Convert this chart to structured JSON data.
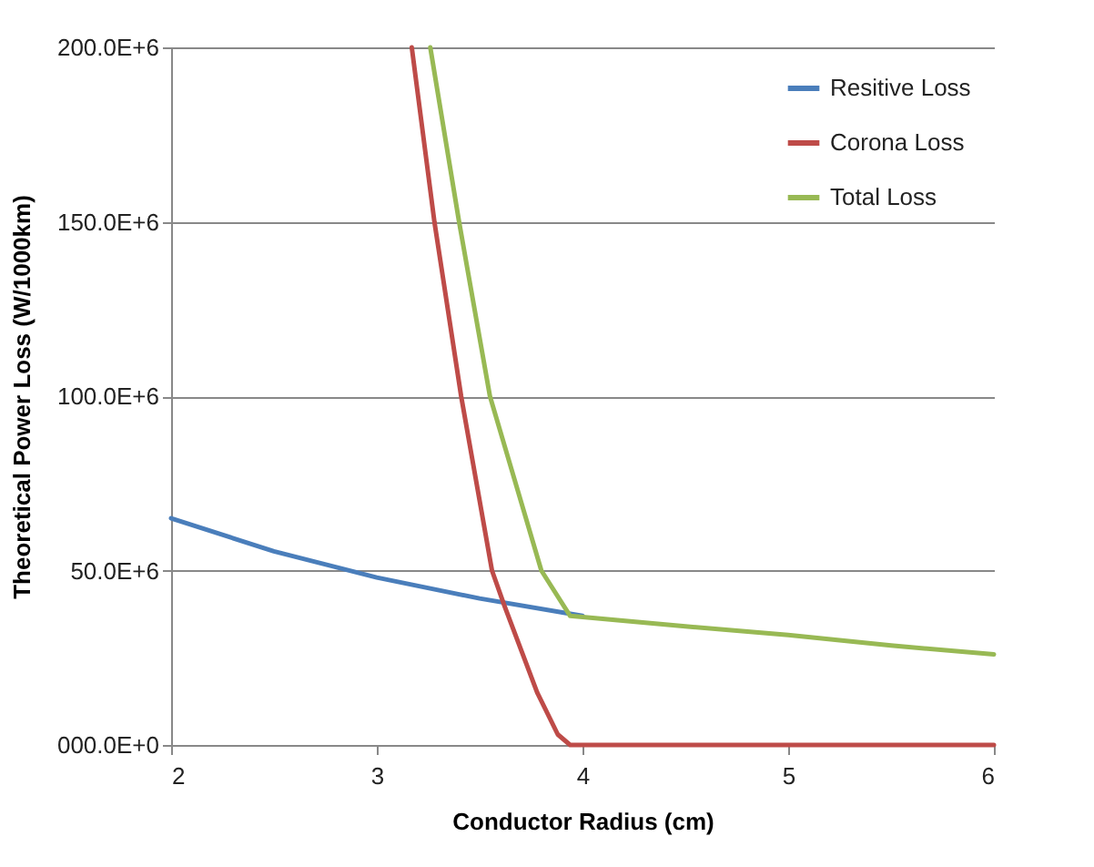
{
  "chart_data": {
    "type": "line",
    "xlabel": "Conductor Radius (cm)",
    "ylabel": "Theoretical Power Loss (W/1000km)",
    "xlim": [
      2,
      6
    ],
    "xticks": [
      2,
      3,
      4,
      5,
      6
    ],
    "ylim": [
      0,
      200000000
    ],
    "yticks": [
      {
        "value": 0,
        "label": "000.0E+0"
      },
      {
        "value": 50000000,
        "label": "50.0E+6"
      },
      {
        "value": 100000000,
        "label": "100.0E+6"
      },
      {
        "value": 150000000,
        "label": "150.0E+6"
      },
      {
        "value": 200000000,
        "label": "200.0E+6"
      }
    ],
    "grid": "y",
    "legend": "top right",
    "series": [
      {
        "name": "Resitive Loss",
        "color": "#4a7ebb",
        "x": [
          2,
          2.5,
          3,
          3.5,
          4
        ],
        "values": [
          65000000,
          55500000,
          48000000,
          42000000,
          37000000
        ]
      },
      {
        "name": "Corona Loss",
        "color": "#be4b48",
        "x": [
          3.17,
          3.28,
          3.41,
          3.56,
          3.62,
          3.78,
          3.88,
          3.94,
          6
        ],
        "values": [
          200000000,
          150000000,
          100000000,
          50000000,
          40000000,
          15000000,
          3000000,
          0,
          0
        ]
      },
      {
        "name": "Total Loss",
        "color": "#98b954",
        "x": [
          3.26,
          3.4,
          3.55,
          3.8,
          3.94,
          4.5,
          5,
          5.5,
          6
        ],
        "values": [
          200000000,
          150000000,
          100000000,
          50000000,
          37000000,
          34000000,
          31500000,
          28500000,
          26000000
        ]
      }
    ]
  }
}
